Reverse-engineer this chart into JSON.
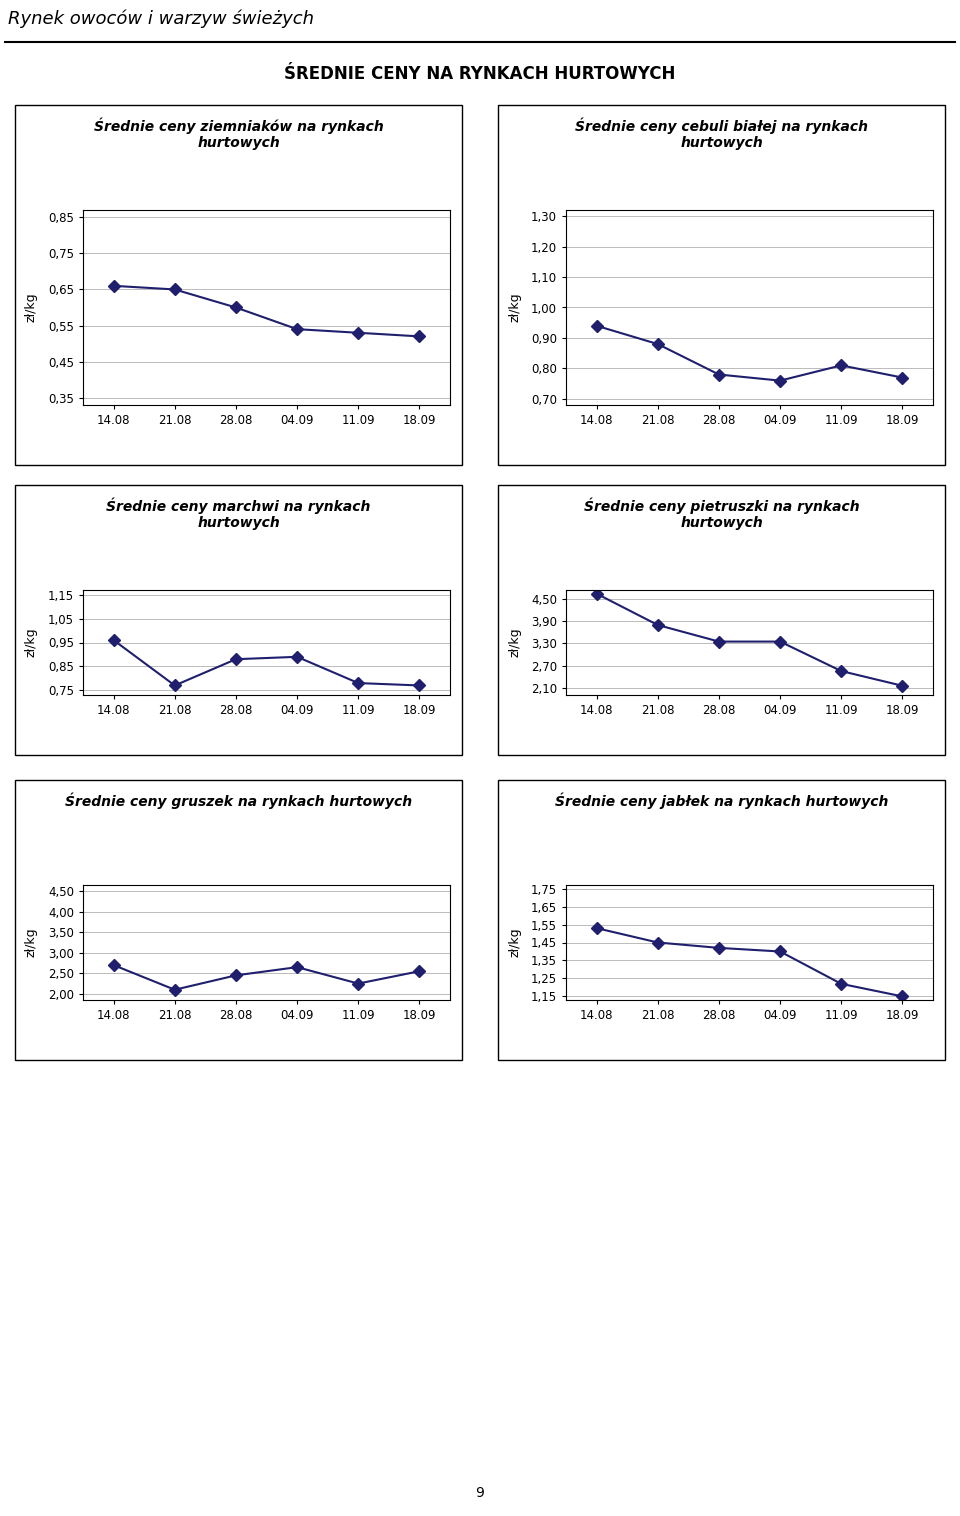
{
  "page_title": "Rynek owoców i warzyw świeżych",
  "main_title": "ŚREDNIE CENY NA RYNKACH HURTOWYCH",
  "x_labels": [
    "14.08",
    "21.08",
    "28.08",
    "04.09",
    "11.09",
    "18.09"
  ],
  "charts": [
    {
      "title": "Średnie ceny ziemniaków na rynkach\nhurtowych",
      "ylabel": "zł/kg",
      "values": [
        0.66,
        0.65,
        0.6,
        0.54,
        0.53,
        0.52
      ],
      "yticks": [
        0.35,
        0.45,
        0.55,
        0.65,
        0.75,
        0.85
      ],
      "ylim": [
        0.33,
        0.87
      ]
    },
    {
      "title": "Średnie ceny cebuli białej na rynkach\nhurtowych",
      "ylabel": "zł/kg",
      "values": [
        0.94,
        0.88,
        0.78,
        0.76,
        0.81,
        0.77
      ],
      "yticks": [
        0.7,
        0.8,
        0.9,
        1.0,
        1.1,
        1.2,
        1.3
      ],
      "ylim": [
        0.68,
        1.32
      ]
    },
    {
      "title": "Średnie ceny marchwi na rynkach\nhurtowych",
      "ylabel": "zł/kg",
      "values": [
        0.96,
        0.77,
        0.88,
        0.89,
        0.78,
        0.77
      ],
      "yticks": [
        0.75,
        0.85,
        0.95,
        1.05,
        1.15
      ],
      "ylim": [
        0.73,
        1.17
      ]
    },
    {
      "title": "Średnie ceny pietruszki na rynkach\nhurtowych",
      "ylabel": "zł/kg",
      "values": [
        4.65,
        3.8,
        3.35,
        3.35,
        2.55,
        2.15
      ],
      "yticks": [
        2.1,
        2.7,
        3.3,
        3.9,
        4.5
      ],
      "ylim": [
        1.9,
        4.75
      ]
    },
    {
      "title": "Średnie ceny gruszek na rynkach hurtowych",
      "ylabel": "zł/kg",
      "values": [
        2.7,
        2.1,
        2.45,
        2.65,
        2.25,
        2.55
      ],
      "yticks": [
        2.0,
        2.5,
        3.0,
        3.5,
        4.0,
        4.5
      ],
      "ylim": [
        1.85,
        4.65
      ]
    },
    {
      "title": "Średnie ceny jabłek na rynkach hurtowych",
      "ylabel": "zł/kg",
      "values": [
        1.53,
        1.45,
        1.42,
        1.4,
        1.22,
        1.15
      ],
      "yticks": [
        1.15,
        1.25,
        1.35,
        1.45,
        1.55,
        1.65,
        1.75
      ],
      "ylim": [
        1.13,
        1.77
      ]
    }
  ],
  "line_color": "#1F1F6E",
  "marker": "D",
  "markersize": 6,
  "linewidth": 1.5,
  "grid_color": "#BBBBBB",
  "background_color": "#FFFFFF",
  "title_fontsize": 10,
  "axis_label_fontsize": 9,
  "tick_fontsize": 8.5,
  "page_title_fontsize": 13,
  "main_title_fontsize": 12
}
